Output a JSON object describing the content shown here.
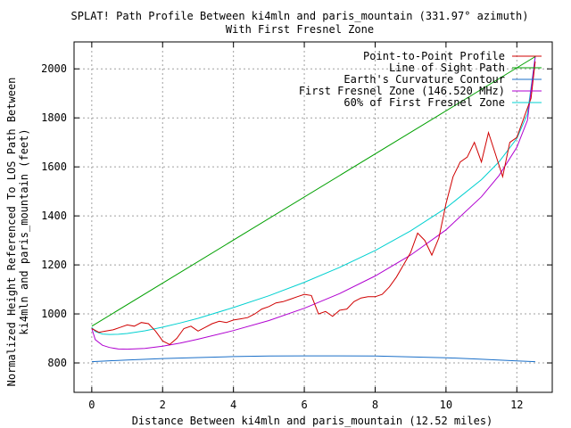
{
  "chart_data": {
    "type": "line",
    "title": "SPLAT! Path Profile Between ki4mln and paris_mountain (331.97° azimuth)",
    "subtitle": "With First Fresnel Zone",
    "xlabel": "Distance Between ki4mln and paris_mountain (12.52 miles)",
    "ylabel_line1": "Normalized Height Referenced To LOS Path Between",
    "ylabel_line2": "ki4mln and paris_mountain (feet)",
    "xlim": [
      -0.5,
      13
    ],
    "ylim": [
      680,
      2110
    ],
    "xticks": [
      0,
      2,
      4,
      6,
      8,
      10,
      12
    ],
    "yticks": [
      800,
      1000,
      1200,
      1400,
      1600,
      1800,
      2000
    ],
    "grid": true,
    "legend_position": "top-right",
    "series": [
      {
        "name": "Point-to-Point Profile",
        "color": "#d00000",
        "x": [
          0,
          0.2,
          0.4,
          0.6,
          0.8,
          1.0,
          1.2,
          1.4,
          1.6,
          1.8,
          2.0,
          2.2,
          2.4,
          2.6,
          2.8,
          3.0,
          3.2,
          3.4,
          3.6,
          3.8,
          4.0,
          4.2,
          4.4,
          4.6,
          4.8,
          5.0,
          5.2,
          5.4,
          5.6,
          5.8,
          6.0,
          6.2,
          6.4,
          6.6,
          6.8,
          7.0,
          7.2,
          7.4,
          7.6,
          7.8,
          8.0,
          8.2,
          8.4,
          8.6,
          8.8,
          9.0,
          9.2,
          9.4,
          9.6,
          9.8,
          10.0,
          10.2,
          10.4,
          10.6,
          10.8,
          11.0,
          11.2,
          11.4,
          11.6,
          11.8,
          12.0,
          12.2,
          12.4,
          12.52
        ],
        "y": [
          940,
          925,
          930,
          935,
          945,
          955,
          950,
          965,
          960,
          930,
          890,
          875,
          900,
          940,
          950,
          930,
          945,
          960,
          970,
          965,
          975,
          980,
          985,
          1000,
          1020,
          1030,
          1045,
          1050,
          1060,
          1070,
          1080,
          1075,
          1000,
          1010,
          990,
          1015,
          1020,
          1050,
          1065,
          1070,
          1070,
          1080,
          1110,
          1150,
          1200,
          1250,
          1330,
          1300,
          1240,
          1310,
          1450,
          1560,
          1620,
          1640,
          1700,
          1620,
          1740,
          1650,
          1560,
          1700,
          1720,
          1800,
          1880,
          2030
        ]
      },
      {
        "name": "Line of Sight Path",
        "color": "#00a000",
        "x": [
          0,
          12.52
        ],
        "y": [
          950,
          2050
        ]
      },
      {
        "name": "Earth's Curvature Contour",
        "color": "#1a6fc8",
        "x": [
          0,
          1,
          2,
          3,
          4,
          5,
          6,
          7,
          8,
          9,
          10,
          11,
          12,
          12.52
        ],
        "y": [
          805,
          812,
          818,
          822,
          826,
          828,
          829,
          829,
          828,
          825,
          821,
          815,
          808,
          805
        ]
      },
      {
        "name": "First Fresnel Zone (146.520 MHz)",
        "color": "#b000d0",
        "x": [
          0,
          0.1,
          0.3,
          0.5,
          0.75,
          1.0,
          1.5,
          2.0,
          2.5,
          3.0,
          4.0,
          5.0,
          6.0,
          7.0,
          8.0,
          9.0,
          10.0,
          11.0,
          11.5,
          12.0,
          12.3,
          12.52
        ],
        "y": [
          940,
          895,
          872,
          863,
          857,
          856,
          859,
          868,
          881,
          897,
          932,
          973,
          1023,
          1083,
          1155,
          1240,
          1343,
          1478,
          1565,
          1680,
          1790,
          2050
        ]
      },
      {
        "name": "60% of First Fresnel Zone",
        "color": "#00d0d0",
        "x": [
          0,
          0.1,
          0.3,
          0.5,
          0.75,
          1.0,
          1.5,
          2.0,
          2.5,
          3.0,
          4.0,
          5.0,
          6.0,
          7.0,
          8.0,
          9.0,
          10.0,
          11.0,
          11.5,
          12.0,
          12.3,
          12.52
        ],
        "y": [
          945,
          928,
          918,
          916,
          917,
          920,
          931,
          946,
          963,
          982,
          1026,
          1074,
          1129,
          1190,
          1259,
          1339,
          1432,
          1548,
          1621,
          1716,
          1816,
          2050
        ]
      }
    ]
  }
}
